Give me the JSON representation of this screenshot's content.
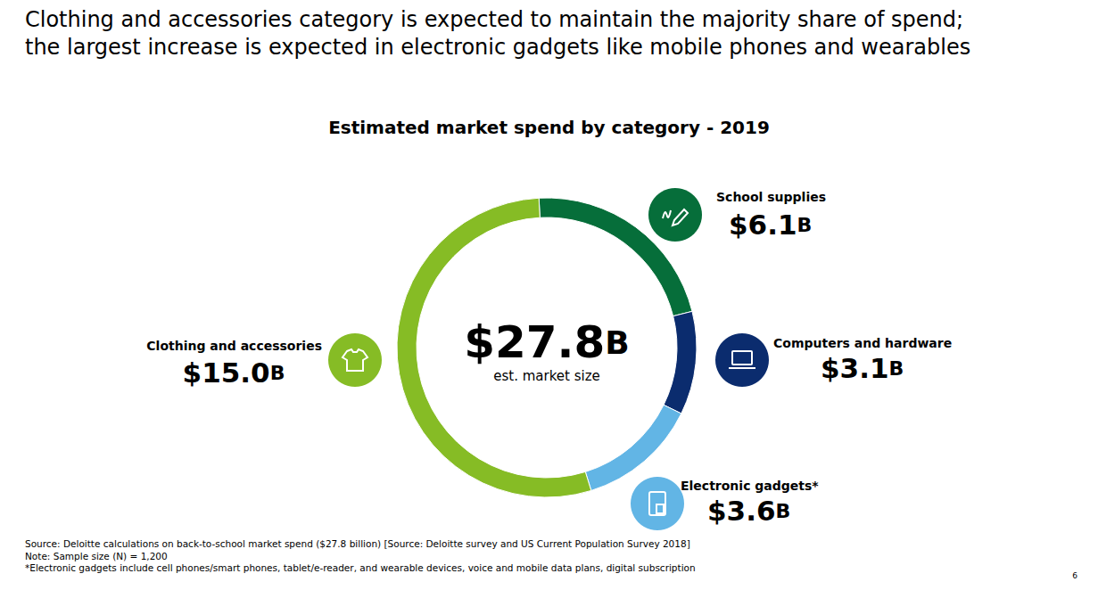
{
  "headline": [
    "Clothing and accessories category is expected to maintain the majority share of spend;",
    "the largest increase is expected in electronic gadgets like mobile phones and wearables"
  ],
  "chart_data": {
    "type": "pie",
    "title": "Estimated market spend by category - 2019",
    "categories": [
      "School supplies",
      "Computers and hardware",
      "Electronic gadgets*",
      "Clothing and accessories"
    ],
    "values": [
      6.1,
      3.1,
      3.6,
      15.0
    ],
    "value_labels": [
      "$6.1B",
      "$3.1B",
      "$3.6B",
      "$15.0B"
    ],
    "colors": [
      "#066e3a",
      "#0b2c6e",
      "#62b5e5",
      "#86bc25"
    ],
    "data_labels": true,
    "center_label": "$27.8B",
    "center_caption": "est. market size"
  },
  "footnotes": [
    "Source: Deloitte calculations on back-to-school market spend ($27.8 billion) [Source: Deloitte survey and US Current Population Survey 2018]",
    "Note: Sample size (N) = 1,200",
    "*Electronic gadgets include cell phones/smart phones, tablet/e-reader, and wearable devices, voice and mobile data plans, digital subscription"
  ],
  "page_number": "6"
}
